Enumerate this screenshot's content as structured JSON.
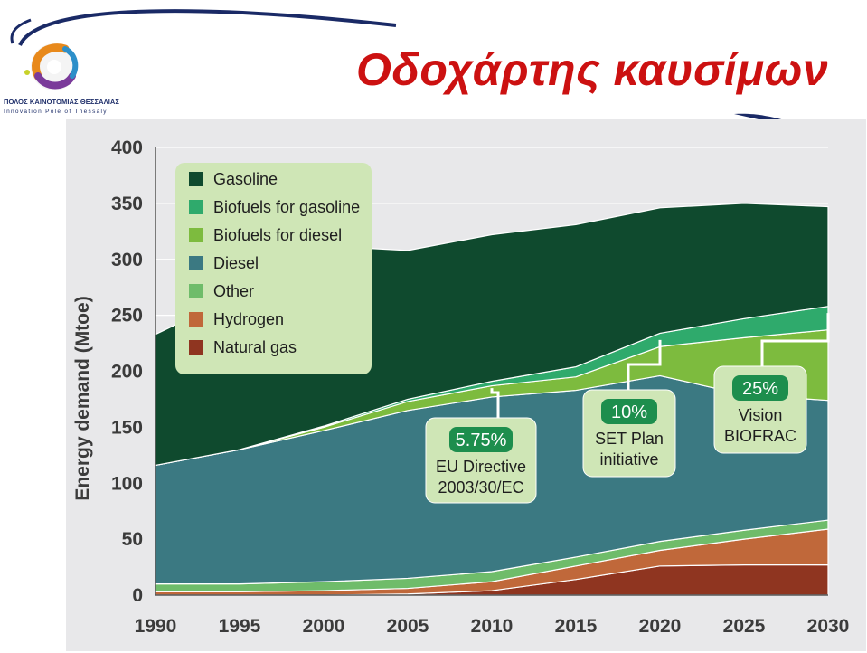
{
  "page": {
    "title": "Οδοχάρτης καυσίμων",
    "logo_line1": "ΠΟΛΟΣ ΚΑΙΝΟΤΟΜΙΑΣ ΘΕΣΣΑΛΙΑΣ",
    "logo_line2": "Innovation Pole of Thessaly"
  },
  "colors": {
    "title": "#cc1111",
    "gasoline": "#0f4a2e",
    "biofuels_gasoline": "#2faa6c",
    "biofuels_diesel": "#7dbb3e",
    "diesel": "#3b7982",
    "other": "#6fbc6a",
    "hydrogen": "#c0683a",
    "natural_gas": "#8f3520",
    "legend_bg": "#cfe6b6",
    "callout_badge": "#1d8e4d"
  },
  "chart_data": {
    "type": "area",
    "stacked": true,
    "title": "",
    "xlabel": "",
    "ylabel": "Energy demand (Mtoe)",
    "ylim": [
      0,
      400
    ],
    "yticks": [
      0,
      50,
      100,
      150,
      200,
      250,
      300,
      350,
      400
    ],
    "x": [
      1990,
      1995,
      2000,
      2005,
      2010,
      2015,
      2020,
      2025,
      2030
    ],
    "grid": true,
    "legend_position": "top-left",
    "series": [
      {
        "name": "Natural gas",
        "color": "natural_gas",
        "values": [
          0,
          0,
          0,
          1,
          4,
          14,
          26,
          27,
          27
        ]
      },
      {
        "name": "Hydrogen",
        "color": "hydrogen",
        "values": [
          3,
          3,
          4,
          5,
          8,
          12,
          14,
          23,
          32
        ]
      },
      {
        "name": "Other",
        "color": "other",
        "values": [
          7,
          7,
          8,
          9,
          9,
          8,
          8,
          8,
          8
        ]
      },
      {
        "name": "Diesel",
        "color": "diesel",
        "values": [
          106,
          120,
          135,
          150,
          156,
          149,
          148,
          121,
          107
        ]
      },
      {
        "name": "Biofuels for diesel",
        "color": "biofuels_diesel",
        "values": [
          0,
          0,
          3,
          8,
          10,
          12,
          26,
          51,
          63
        ]
      },
      {
        "name": "Biofuels for gasoline",
        "color": "biofuels_gasoline",
        "values": [
          0,
          0,
          1,
          2,
          4,
          9,
          12,
          17,
          21
        ]
      },
      {
        "name": "Gasoline",
        "color": "gasoline",
        "values": [
          117,
          139,
          161,
          133,
          131,
          127,
          112,
          103,
          89
        ]
      }
    ],
    "legend": [
      {
        "label": "Gasoline",
        "color": "gasoline"
      },
      {
        "label": "Biofuels for gasoline",
        "color": "biofuels_gasoline"
      },
      {
        "label": "Biofuels for diesel",
        "color": "biofuels_diesel"
      },
      {
        "label": "Diesel",
        "color": "diesel"
      },
      {
        "label": "Other",
        "color": "other"
      },
      {
        "label": "Hydrogen",
        "color": "hydrogen"
      },
      {
        "label": "Natural gas",
        "color": "natural_gas"
      }
    ],
    "annotations": [
      {
        "pct": "5.75%",
        "line1": "EU Directive",
        "line2": "2003/30/EC",
        "year": 2010
      },
      {
        "pct": "10%",
        "line1": "SET Plan",
        "line2": "initiative",
        "year": 2020
      },
      {
        "pct": "25%",
        "line1": "Vision",
        "line2": "BIOFRAC",
        "year": 2030
      }
    ]
  }
}
